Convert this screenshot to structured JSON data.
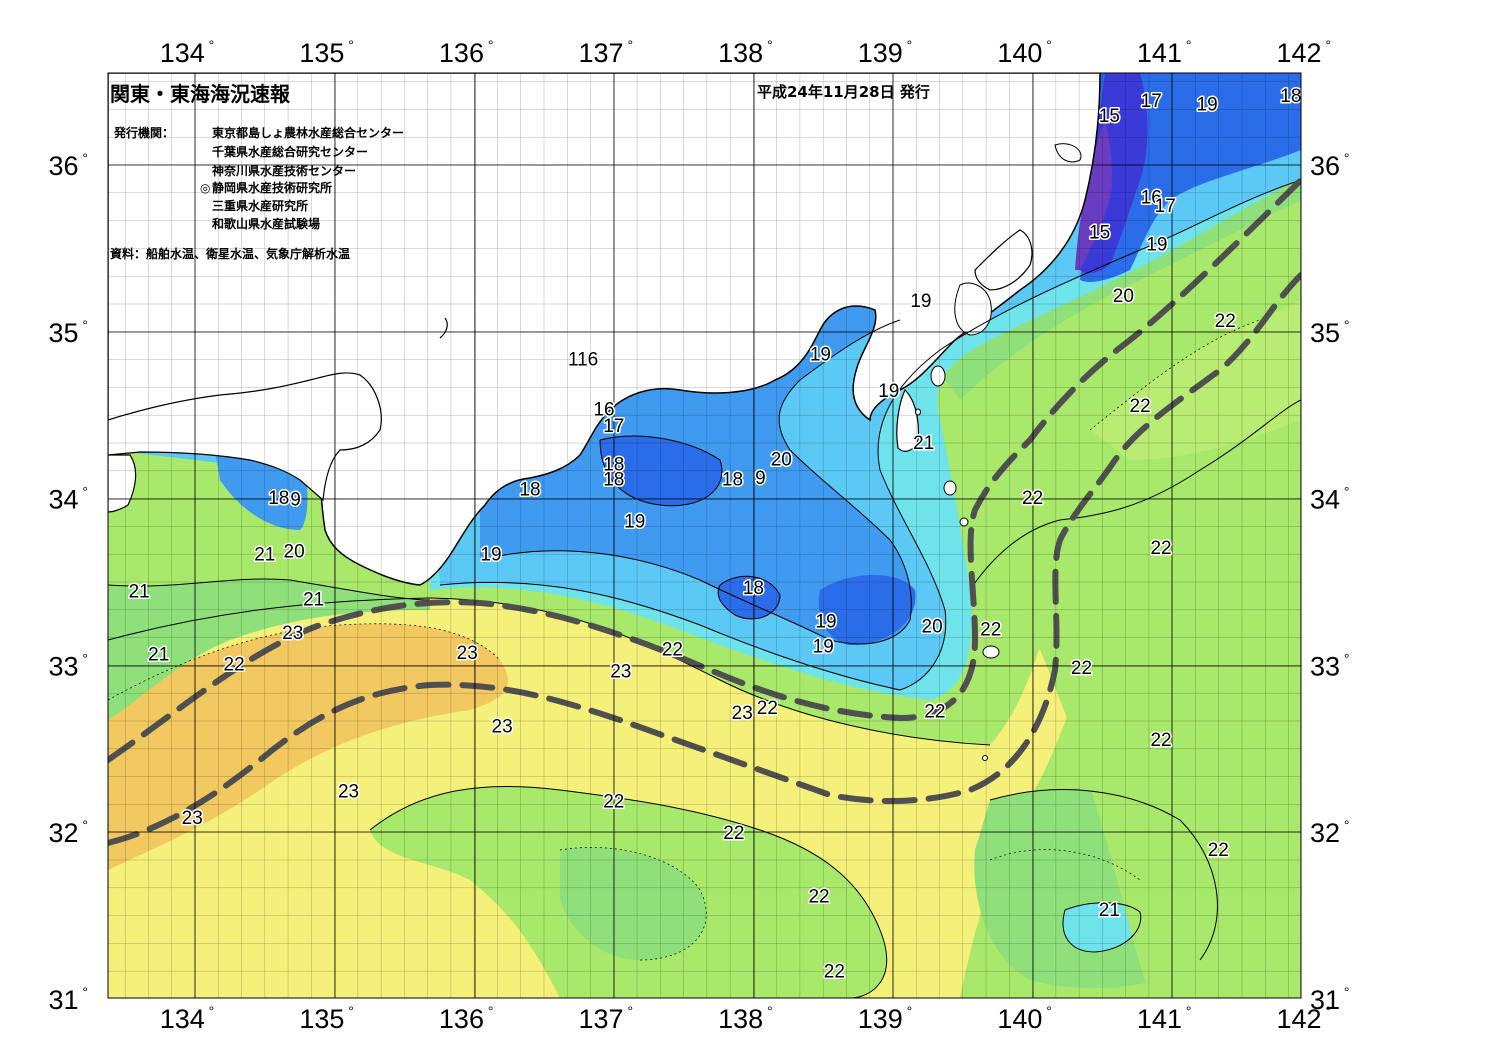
{
  "title": "関東・東海海況速報",
  "issue_date": "平成24年11月28日 発行",
  "issuer_label": "発行機関：",
  "organizations": [
    {
      "mark": "",
      "name": "東京都島しょ農林水産総合センター"
    },
    {
      "mark": "",
      "name": "千葉県水産総合研究センター"
    },
    {
      "mark": "",
      "name": "神奈川県水産技術センター"
    },
    {
      "mark": "◎",
      "name": "静岡県水産技術研究所"
    },
    {
      "mark": "",
      "name": "三重県水産研究所"
    },
    {
      "mark": "",
      "name": "和歌山県水産試験場"
    }
  ],
  "source_note": "資料：船舶水温、衛星水温、気象庁解析水温",
  "lon_labels": [
    "134",
    "135",
    "136",
    "137",
    "138",
    "139",
    "140",
    "141",
    "142"
  ],
  "lat_labels": [
    "36",
    "35",
    "34",
    "33",
    "32",
    "31"
  ],
  "degree_mark": "°",
  "temperature_colors": {
    "15": "#6a3cc0",
    "16": "#3a3ad8",
    "17": "#2b6de8",
    "18": "#3f9af0",
    "19": "#5cc8f5",
    "20": "#6fe3ec",
    "21": "#8fe07a",
    "22": "#a8e86a",
    "23": "#f5f07a",
    "24": "#f2c860",
    "land": "#ffffff"
  },
  "isotherm_labels": [
    {
      "t": "15",
      "lon": 140.55,
      "lat": 36.3
    },
    {
      "t": "17",
      "lon": 140.85,
      "lat": 36.39
    },
    {
      "t": "19",
      "lon": 141.25,
      "lat": 36.37
    },
    {
      "t": "18",
      "lon": 141.85,
      "lat": 36.42
    },
    {
      "t": "16",
      "lon": 140.85,
      "lat": 35.81
    },
    {
      "t": "17",
      "lon": 140.95,
      "lat": 35.76
    },
    {
      "t": "15",
      "lon": 140.48,
      "lat": 35.6
    },
    {
      "t": "19",
      "lon": 140.89,
      "lat": 35.53
    },
    {
      "t": "20",
      "lon": 140.65,
      "lat": 35.22
    },
    {
      "t": "22",
      "lon": 141.38,
      "lat": 35.07
    },
    {
      "t": "19",
      "lon": 139.2,
      "lat": 35.19
    },
    {
      "t": "19",
      "lon": 138.48,
      "lat": 34.87
    },
    {
      "t": "19",
      "lon": 138.97,
      "lat": 34.65
    },
    {
      "t": "21",
      "lon": 139.22,
      "lat": 34.34
    },
    {
      "t": "22",
      "lon": 140.77,
      "lat": 34.56
    },
    {
      "t": "116",
      "lon": 136.78,
      "lat": 34.84
    },
    {
      "t": "16",
      "lon": 136.93,
      "lat": 34.54
    },
    {
      "t": "17",
      "lon": 137.0,
      "lat": 34.44
    },
    {
      "t": "18",
      "lon": 137.0,
      "lat": 34.21
    },
    {
      "t": "18",
      "lon": 137.0,
      "lat": 34.12
    },
    {
      "t": "18",
      "lon": 137.85,
      "lat": 34.12
    },
    {
      "t": "9",
      "lon": 138.05,
      "lat": 34.13
    },
    {
      "t": "20",
      "lon": 138.2,
      "lat": 34.24
    },
    {
      "t": "18",
      "lon": 136.4,
      "lat": 34.06
    },
    {
      "t": "19",
      "lon": 137.15,
      "lat": 33.87
    },
    {
      "t": "19",
      "lon": 136.12,
      "lat": 33.67
    },
    {
      "t": "18",
      "lon": 138.0,
      "lat": 33.47
    },
    {
      "t": "19",
      "lon": 138.52,
      "lat": 33.27
    },
    {
      "t": "19",
      "lon": 138.5,
      "lat": 33.12
    },
    {
      "t": "20",
      "lon": 139.28,
      "lat": 33.24
    },
    {
      "t": "22",
      "lon": 140.0,
      "lat": 34.01
    },
    {
      "t": "22",
      "lon": 140.92,
      "lat": 33.71
    },
    {
      "t": "22",
      "lon": 139.7,
      "lat": 33.22
    },
    {
      "t": "22",
      "lon": 140.35,
      "lat": 32.99
    },
    {
      "t": "22",
      "lon": 139.3,
      "lat": 32.73
    },
    {
      "t": "22",
      "lon": 138.1,
      "lat": 32.75
    },
    {
      "t": "23",
      "lon": 137.92,
      "lat": 32.72
    },
    {
      "t": "23",
      "lon": 137.05,
      "lat": 32.97
    },
    {
      "t": "22",
      "lon": 137.42,
      "lat": 33.1
    },
    {
      "t": "23",
      "lon": 135.95,
      "lat": 33.08
    },
    {
      "t": "23",
      "lon": 136.2,
      "lat": 32.64
    },
    {
      "t": "22",
      "lon": 140.92,
      "lat": 32.56
    },
    {
      "t": "23",
      "lon": 135.1,
      "lat": 32.25
    },
    {
      "t": "23",
      "lon": 133.98,
      "lat": 32.09
    },
    {
      "t": "22",
      "lon": 137.0,
      "lat": 32.19
    },
    {
      "t": "22",
      "lon": 137.86,
      "lat": 32.0
    },
    {
      "t": "22",
      "lon": 141.33,
      "lat": 31.9
    },
    {
      "t": "22",
      "lon": 138.47,
      "lat": 31.62
    },
    {
      "t": "21",
      "lon": 140.55,
      "lat": 31.54
    },
    {
      "t": "22",
      "lon": 138.58,
      "lat": 31.17
    },
    {
      "t": "18",
      "lon": 134.6,
      "lat": 34.01
    },
    {
      "t": "9",
      "lon": 134.72,
      "lat": 34.0
    },
    {
      "t": "21",
      "lon": 134.5,
      "lat": 33.67
    },
    {
      "t": "20",
      "lon": 134.71,
      "lat": 33.69
    },
    {
      "t": "21",
      "lon": 133.6,
      "lat": 33.45
    },
    {
      "t": "21",
      "lon": 134.85,
      "lat": 33.4
    },
    {
      "t": "23",
      "lon": 134.7,
      "lat": 33.2
    },
    {
      "t": "21",
      "lon": 133.74,
      "lat": 33.07
    },
    {
      "t": "22",
      "lon": 134.28,
      "lat": 33.01
    }
  ]
}
